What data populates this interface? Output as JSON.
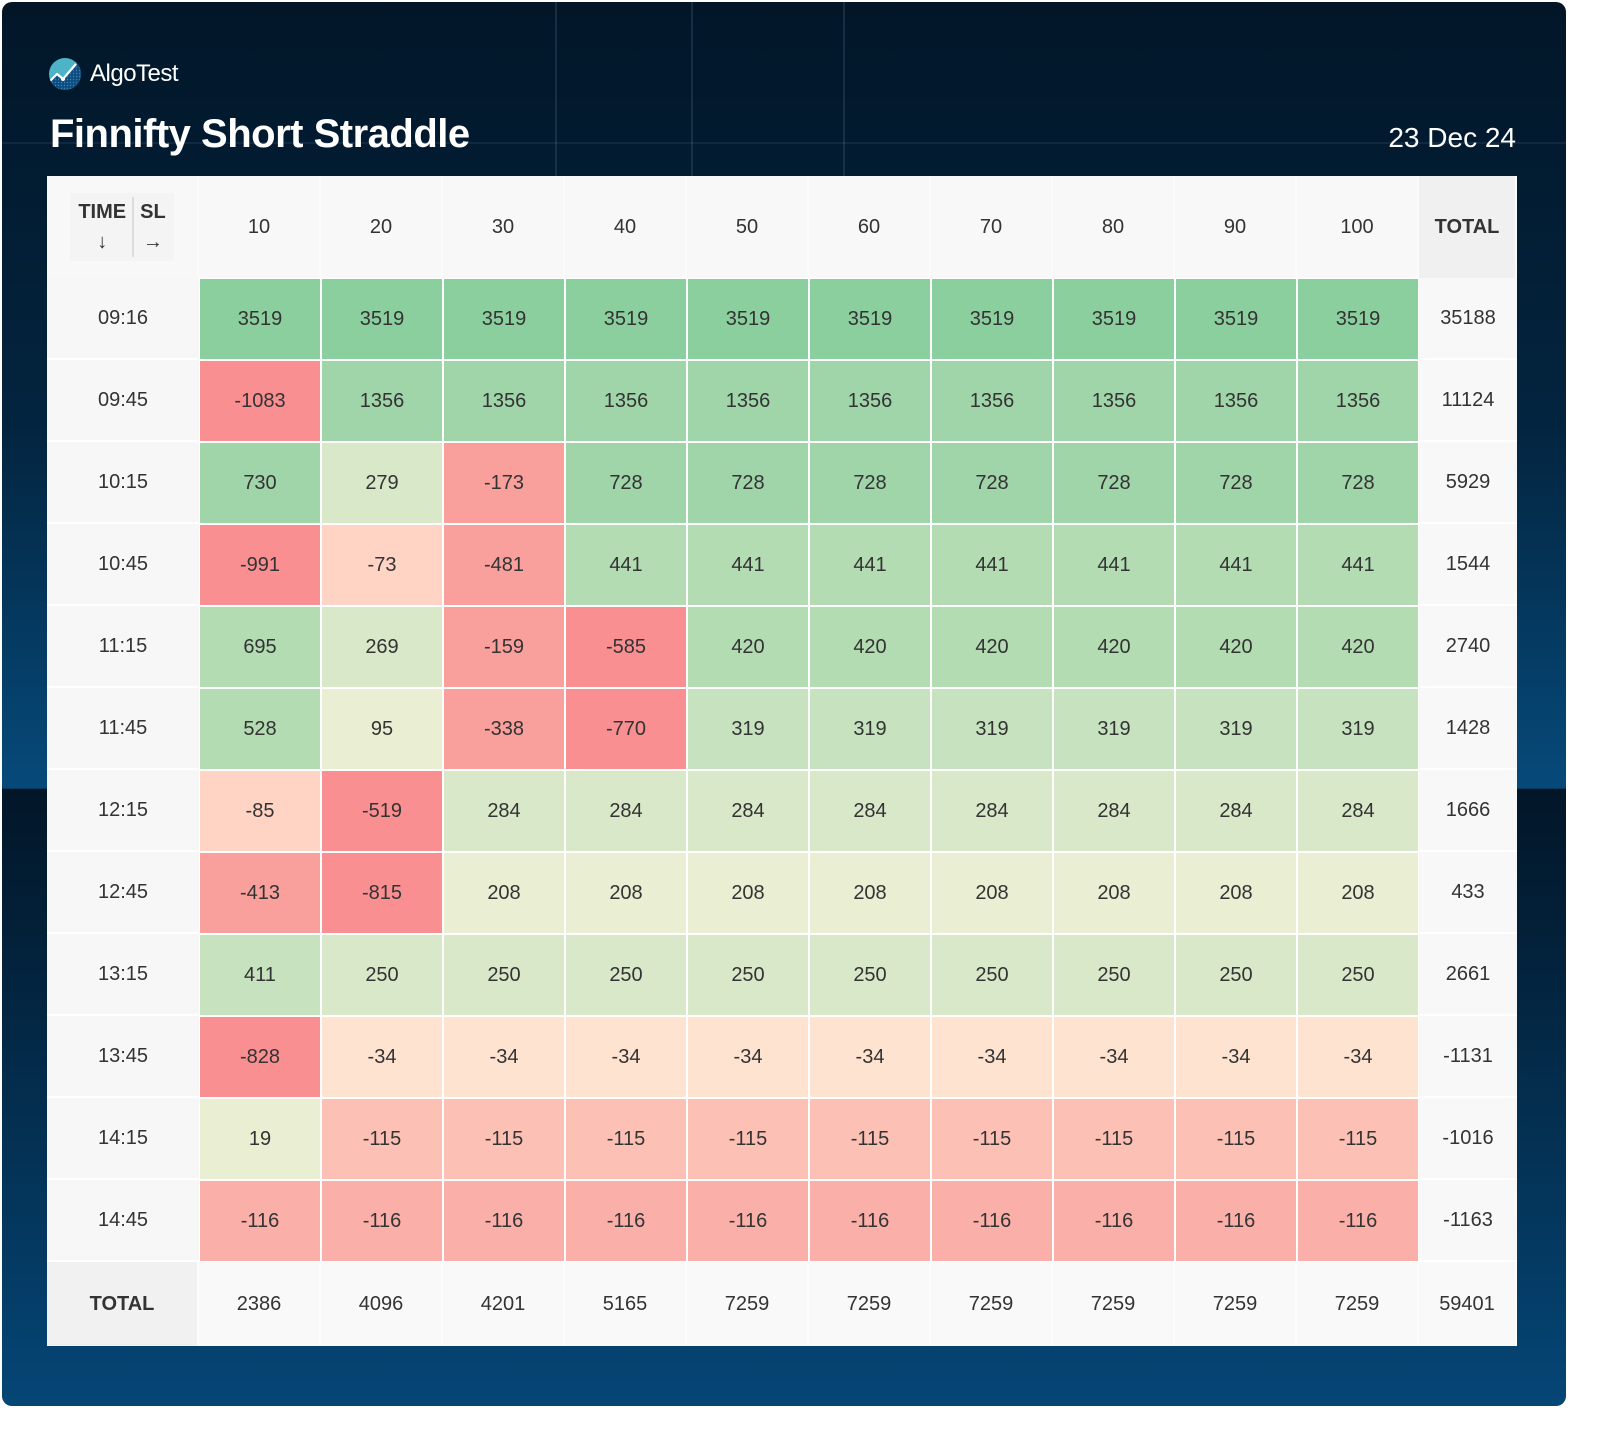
{
  "brand": {
    "name": "AlgoTest",
    "logo_icon": "algotest-logo-icon"
  },
  "header": {
    "title": "Finnifty Short Straddle",
    "date": "23 Dec 24"
  },
  "colors": {
    "strong_green": "#8bcf9f",
    "green": "#a0d4a9",
    "light_green": "#b3dcb3",
    "pale_green": "#c6e2bf",
    "faint_green": "#d9e8c9",
    "yellowish": "#eaefd3",
    "peach": "#ffe3d1",
    "light_red": "#fdc0b5",
    "red": "#faafa9",
    "mid_red": "#f9a09d",
    "strong_red": "#f98f91"
  },
  "chart_data": {
    "type": "heatmap",
    "title": "Finnifty Short Straddle",
    "date": "23 Dec 24",
    "corner_labels": {
      "row_axis": "TIME",
      "row_arrow": "↓",
      "col_axis": "SL",
      "col_arrow": "→"
    },
    "xlabel": "SL",
    "ylabel": "TIME",
    "total_label": "TOTAL",
    "columns": [
      "10",
      "20",
      "30",
      "40",
      "50",
      "60",
      "70",
      "80",
      "90",
      "100"
    ],
    "rows": [
      {
        "time": "09:16",
        "values": [
          3519,
          3519,
          3519,
          3519,
          3519,
          3519,
          3519,
          3519,
          3519,
          3519
        ],
        "total": 35188
      },
      {
        "time": "09:45",
        "values": [
          -1083,
          1356,
          1356,
          1356,
          1356,
          1356,
          1356,
          1356,
          1356,
          1356
        ],
        "total": 11124
      },
      {
        "time": "10:15",
        "values": [
          730,
          279,
          -173,
          728,
          728,
          728,
          728,
          728,
          728,
          728
        ],
        "total": 5929
      },
      {
        "time": "10:45",
        "values": [
          -991,
          -73,
          -481,
          441,
          441,
          441,
          441,
          441,
          441,
          441
        ],
        "total": 1544
      },
      {
        "time": "11:15",
        "values": [
          695,
          269,
          -159,
          -585,
          420,
          420,
          420,
          420,
          420,
          420
        ],
        "total": 2740
      },
      {
        "time": "11:45",
        "values": [
          528,
          95,
          -338,
          -770,
          319,
          319,
          319,
          319,
          319,
          319
        ],
        "total": 1428
      },
      {
        "time": "12:15",
        "values": [
          -85,
          -519,
          284,
          284,
          284,
          284,
          284,
          284,
          284,
          284
        ],
        "total": 1666
      },
      {
        "time": "12:45",
        "values": [
          -413,
          -815,
          208,
          208,
          208,
          208,
          208,
          208,
          208,
          208
        ],
        "total": 433
      },
      {
        "time": "13:15",
        "values": [
          411,
          250,
          250,
          250,
          250,
          250,
          250,
          250,
          250,
          250
        ],
        "total": 2661
      },
      {
        "time": "13:45",
        "values": [
          -828,
          -34,
          -34,
          -34,
          -34,
          -34,
          -34,
          -34,
          -34,
          -34
        ],
        "total": -1131
      },
      {
        "time": "14:15",
        "values": [
          19,
          -115,
          -115,
          -115,
          -115,
          -115,
          -115,
          -115,
          -115,
          -115
        ],
        "total": -1016
      },
      {
        "time": "14:45",
        "values": [
          -116,
          -116,
          -116,
          -116,
          -116,
          -116,
          -116,
          -116,
          -116,
          -116
        ],
        "total": -1163
      }
    ],
    "column_totals": [
      2386,
      4096,
      4201,
      5165,
      7259,
      7259,
      7259,
      7259,
      7259,
      7259
    ],
    "grand_total": 59401
  }
}
